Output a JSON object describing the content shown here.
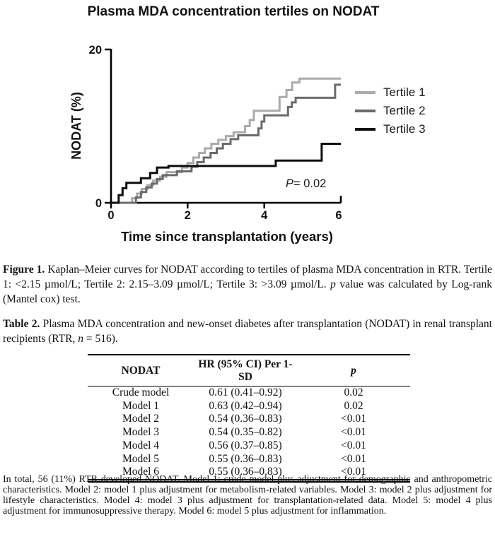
{
  "chart": {
    "title": "Plasma MDA concentration tertiles on NODAT",
    "annotation": {
      "italic": "P",
      "rest": "= 0.02"
    }
  },
  "chart_data": {
    "type": "line",
    "subtype": "kaplan-meier-step",
    "title": "Plasma MDA concentration tertiles on NODAT",
    "xlabel": "Time since transplantation (years)",
    "ylabel": "NODAT (%)",
    "xlim": [
      0,
      6
    ],
    "ylim": [
      0,
      20
    ],
    "x_ticks": [
      0,
      2,
      4,
      6
    ],
    "y_ticks": [
      0,
      20
    ],
    "grid": false,
    "legend_position": "right",
    "annotation": "P= 0.02",
    "series": [
      {
        "name": "Tertile 1",
        "color": "#ababab",
        "points": [
          [
            0,
            0
          ],
          [
            0.55,
            0.6
          ],
          [
            0.68,
            1.2
          ],
          [
            0.8,
            1.8
          ],
          [
            0.95,
            2.3
          ],
          [
            1.1,
            2.9
          ],
          [
            1.28,
            3.4
          ],
          [
            1.45,
            4.0
          ],
          [
            1.85,
            4.6
          ],
          [
            2.0,
            5.2
          ],
          [
            2.15,
            5.9
          ],
          [
            2.3,
            6.5
          ],
          [
            2.45,
            7.1
          ],
          [
            2.62,
            7.7
          ],
          [
            2.8,
            8.2
          ],
          [
            3.0,
            8.7
          ],
          [
            3.2,
            9.2
          ],
          [
            3.5,
            10.0
          ],
          [
            3.62,
            10.8
          ],
          [
            3.73,
            12.0
          ],
          [
            4.4,
            13.8
          ],
          [
            4.58,
            14.7
          ],
          [
            4.73,
            15.7
          ],
          [
            4.92,
            16.2
          ],
          [
            6,
            16.2
          ]
        ]
      },
      {
        "name": "Tertile 2",
        "color": "#6b6b6b",
        "points": [
          [
            0,
            0
          ],
          [
            0.65,
            0.7
          ],
          [
            0.78,
            1.4
          ],
          [
            0.92,
            2.0
          ],
          [
            1.06,
            2.5
          ],
          [
            1.2,
            3.1
          ],
          [
            1.35,
            3.6
          ],
          [
            1.72,
            4.1
          ],
          [
            2.1,
            4.7
          ],
          [
            2.25,
            5.3
          ],
          [
            2.42,
            5.9
          ],
          [
            2.6,
            6.5
          ],
          [
            2.76,
            7.1
          ],
          [
            2.92,
            7.7
          ],
          [
            3.12,
            8.3
          ],
          [
            3.32,
            8.8
          ],
          [
            3.85,
            9.7
          ],
          [
            3.93,
            10.6
          ],
          [
            4.0,
            11.4
          ],
          [
            4.62,
            12.5
          ],
          [
            4.72,
            13.1
          ],
          [
            4.82,
            13.7
          ],
          [
            5.85,
            15.4
          ],
          [
            6,
            15.4
          ]
        ]
      },
      {
        "name": "Tertile 3",
        "color": "#0d0d0d",
        "points": [
          [
            0,
            0
          ],
          [
            0.2,
            1.0
          ],
          [
            0.3,
            1.9
          ],
          [
            0.4,
            2.6
          ],
          [
            0.78,
            3.2
          ],
          [
            1.02,
            3.9
          ],
          [
            1.2,
            4.6
          ],
          [
            1.5,
            4.8
          ],
          [
            4.3,
            5.5
          ],
          [
            5.5,
            7.7
          ],
          [
            6,
            7.7
          ]
        ]
      }
    ]
  },
  "figure_caption": {
    "segments": [
      {
        "t": "Figure 1. ",
        "b": true
      },
      {
        "t": "Kaplan–Meier curves for NODAT according to tertiles of plasma MDA concentration in RTR. Tertile 1: <2.15 µmol/L; Tertile 2: 2.15–3.09 µmol/L; Tertile 3: >3.09 µmol/L. "
      },
      {
        "t": "p",
        "i": true
      },
      {
        "t": " value was calculated by Log-rank (Mantel cox) test."
      }
    ]
  },
  "table_caption": {
    "segments": [
      {
        "t": "Table 2. ",
        "b": true
      },
      {
        "t": "Plasma MDA concentration and new-onset diabetes after transplantation (NODAT) in renal transplant recipients (RTR, "
      },
      {
        "t": "n",
        "i": true
      },
      {
        "t": " = 516)."
      }
    ]
  },
  "table": {
    "headers": [
      [
        {
          "t": "NODAT"
        }
      ],
      [
        {
          "t": "HR (95% CI) Per 1-SD"
        }
      ],
      [
        {
          "t": "p",
          "i": true
        }
      ]
    ],
    "rows": [
      [
        "Crude model",
        "0.61 (0.41–0.92)",
        "0.02"
      ],
      [
        "Model 1",
        "0.63 (0.42–0.94)",
        "0.02"
      ],
      [
        "Model 2",
        "0.54 (0.36–0.83)",
        "<0.01"
      ],
      [
        "Model 3",
        "0.54 (0.35–0.82)",
        "<0.01"
      ],
      [
        "Model 4",
        "0.56 (0.37–0.85)",
        "<0.01"
      ],
      [
        "Model 5",
        "0.55 (0.36–0.83)",
        "<0.01"
      ],
      [
        "Model 6",
        "0.55 (0.36–0.83)",
        "<0.01"
      ]
    ]
  },
  "footnote": {
    "segments": [
      {
        "t": "In total, 56 (11%) RTR developed NODAT. Model 1: crude model plus adjustment for demographic and anthropometric characteristics. Model 2: model 1 plus adjustment for metabolism-related variables. Model 3: model 2 plus adjustment for lifestyle characteristics. Model 4: model 3 plus adjustment for transplantation-related data. Model 5: model 4 plus adjustment for immunosuppressive therapy. Model 6: model 5 plus adjustment for inflammation."
      }
    ]
  }
}
